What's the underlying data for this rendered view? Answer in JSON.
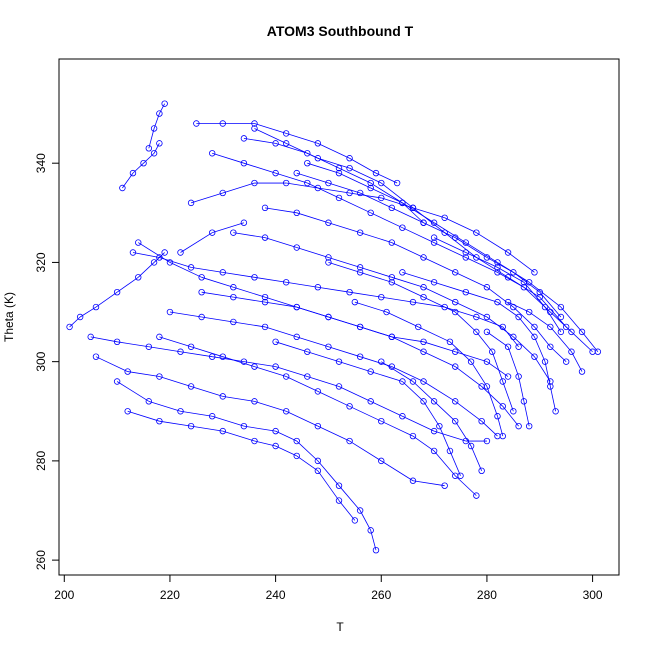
{
  "chart_data": {
    "type": "scatter",
    "title": "ATOM3 Southbound T",
    "xlabel": "T",
    "ylabel": "Theta (K)",
    "xlim": [
      199,
      305
    ],
    "ylim": [
      257,
      361
    ],
    "xticks": [
      "200",
      "220",
      "240",
      "260",
      "280",
      "300"
    ],
    "yticks": [
      "260",
      "280",
      "300",
      "320",
      "340"
    ],
    "marker": "open-circle",
    "line_style": "connected",
    "grid": false,
    "series": [
      {
        "points": [
          [
            201,
            307
          ],
          [
            203,
            309
          ],
          [
            206,
            311
          ],
          [
            210,
            314
          ],
          [
            214,
            317
          ],
          [
            217,
            320
          ],
          [
            219,
            322
          ]
        ]
      },
      {
        "points": [
          [
            211,
            335
          ],
          [
            213,
            338
          ],
          [
            215,
            340
          ],
          [
            217,
            342
          ],
          [
            218,
            344
          ]
        ]
      },
      {
        "points": [
          [
            216,
            343
          ],
          [
            217,
            347
          ],
          [
            218,
            350
          ],
          [
            219,
            352
          ]
        ]
      },
      {
        "points": [
          [
            225,
            348
          ],
          [
            230,
            348
          ],
          [
            236,
            348
          ],
          [
            242,
            346
          ],
          [
            248,
            344
          ],
          [
            254,
            341
          ],
          [
            259,
            338
          ],
          [
            263,
            336
          ]
        ]
      },
      {
        "points": [
          [
            234,
            345
          ],
          [
            240,
            344
          ],
          [
            246,
            342
          ],
          [
            252,
            339
          ],
          [
            258,
            336
          ],
          [
            264,
            332
          ],
          [
            270,
            328
          ],
          [
            276,
            324
          ],
          [
            282,
            320
          ],
          [
            288,
            316
          ],
          [
            294,
            311
          ],
          [
            298,
            306
          ],
          [
            301,
            302
          ]
        ]
      },
      {
        "points": [
          [
            236,
            347
          ],
          [
            242,
            344
          ],
          [
            248,
            341
          ],
          [
            254,
            339
          ],
          [
            260,
            336
          ],
          [
            266,
            331
          ],
          [
            272,
            326
          ],
          [
            278,
            321
          ],
          [
            284,
            317
          ],
          [
            290,
            313
          ],
          [
            295,
            307
          ],
          [
            300,
            302
          ]
        ]
      },
      {
        "points": [
          [
            228,
            342
          ],
          [
            234,
            340
          ],
          [
            240,
            338
          ],
          [
            246,
            336
          ],
          [
            252,
            333
          ],
          [
            258,
            330
          ],
          [
            264,
            327
          ],
          [
            270,
            324
          ],
          [
            276,
            321
          ],
          [
            282,
            318
          ],
          [
            287,
            315
          ],
          [
            292,
            310
          ],
          [
            296,
            306
          ]
        ]
      },
      {
        "points": [
          [
            214,
            324
          ],
          [
            220,
            320
          ],
          [
            226,
            317
          ],
          [
            232,
            315
          ],
          [
            238,
            313
          ],
          [
            244,
            311
          ],
          [
            250,
            309
          ],
          [
            256,
            307
          ],
          [
            262,
            305
          ],
          [
            268,
            304
          ],
          [
            274,
            302
          ],
          [
            280,
            300
          ],
          [
            284,
            297
          ]
        ]
      },
      {
        "points": [
          [
            213,
            322
          ],
          [
            218,
            321
          ],
          [
            224,
            319
          ],
          [
            230,
            318
          ],
          [
            236,
            317
          ],
          [
            242,
            316
          ],
          [
            248,
            315
          ],
          [
            254,
            314
          ],
          [
            260,
            313
          ],
          [
            266,
            312
          ],
          [
            272,
            311
          ],
          [
            278,
            309
          ],
          [
            283,
            307
          ],
          [
            286,
            303
          ]
        ]
      },
      {
        "points": [
          [
            222,
            322
          ],
          [
            228,
            326
          ],
          [
            234,
            328
          ]
        ]
      },
      {
        "points": [
          [
            224,
            332
          ],
          [
            230,
            334
          ],
          [
            236,
            336
          ],
          [
            242,
            336
          ],
          [
            248,
            335
          ],
          [
            254,
            334
          ],
          [
            260,
            333
          ],
          [
            266,
            331
          ],
          [
            272,
            329
          ],
          [
            278,
            326
          ],
          [
            284,
            322
          ],
          [
            289,
            318
          ]
        ]
      },
      {
        "points": [
          [
            205,
            305
          ],
          [
            210,
            304
          ],
          [
            216,
            303
          ],
          [
            222,
            302
          ],
          [
            228,
            301
          ],
          [
            234,
            300
          ],
          [
            240,
            299
          ],
          [
            246,
            297
          ],
          [
            252,
            295
          ],
          [
            258,
            292
          ],
          [
            264,
            289
          ],
          [
            270,
            286
          ],
          [
            276,
            284
          ],
          [
            280,
            284
          ]
        ]
      },
      {
        "points": [
          [
            206,
            301
          ],
          [
            212,
            298
          ],
          [
            218,
            297
          ],
          [
            224,
            295
          ],
          [
            230,
            293
          ],
          [
            236,
            292
          ],
          [
            242,
            290
          ],
          [
            248,
            287
          ],
          [
            254,
            284
          ],
          [
            260,
            280
          ],
          [
            266,
            276
          ],
          [
            272,
            275
          ]
        ]
      },
      {
        "points": [
          [
            210,
            296
          ],
          [
            216,
            292
          ],
          [
            222,
            290
          ],
          [
            228,
            289
          ],
          [
            234,
            287
          ],
          [
            240,
            286
          ],
          [
            244,
            284
          ],
          [
            248,
            280
          ],
          [
            252,
            275
          ],
          [
            256,
            270
          ],
          [
            258,
            266
          ],
          [
            259,
            262
          ]
        ]
      },
      {
        "points": [
          [
            212,
            290
          ],
          [
            218,
            288
          ],
          [
            224,
            287
          ],
          [
            230,
            286
          ],
          [
            236,
            284
          ],
          [
            240,
            283
          ],
          [
            244,
            281
          ],
          [
            248,
            278
          ],
          [
            252,
            272
          ],
          [
            255,
            268
          ]
        ]
      },
      {
        "points": [
          [
            218,
            305
          ],
          [
            224,
            303
          ],
          [
            230,
            301
          ],
          [
            236,
            299
          ],
          [
            242,
            297
          ],
          [
            248,
            294
          ],
          [
            254,
            291
          ],
          [
            260,
            288
          ],
          [
            266,
            285
          ],
          [
            270,
            282
          ],
          [
            274,
            277
          ],
          [
            278,
            273
          ]
        ]
      },
      {
        "points": [
          [
            220,
            310
          ],
          [
            226,
            309
          ],
          [
            232,
            308
          ],
          [
            238,
            307
          ],
          [
            244,
            305
          ],
          [
            250,
            303
          ],
          [
            256,
            301
          ],
          [
            262,
            299
          ],
          [
            268,
            296
          ],
          [
            274,
            292
          ],
          [
            279,
            288
          ],
          [
            282,
            285
          ]
        ]
      },
      {
        "points": [
          [
            226,
            314
          ],
          [
            232,
            313
          ],
          [
            238,
            312
          ],
          [
            244,
            311
          ],
          [
            250,
            309
          ],
          [
            256,
            307
          ],
          [
            262,
            305
          ],
          [
            268,
            302
          ],
          [
            274,
            299
          ],
          [
            279,
            295
          ],
          [
            283,
            291
          ],
          [
            286,
            287
          ]
        ]
      },
      {
        "points": [
          [
            232,
            326
          ],
          [
            238,
            325
          ],
          [
            244,
            323
          ],
          [
            250,
            321
          ],
          [
            256,
            319
          ],
          [
            262,
            317
          ],
          [
            268,
            315
          ],
          [
            274,
            312
          ],
          [
            280,
            309
          ],
          [
            285,
            305
          ],
          [
            289,
            301
          ],
          [
            292,
            296
          ]
        ]
      },
      {
        "points": [
          [
            238,
            331
          ],
          [
            244,
            330
          ],
          [
            250,
            328
          ],
          [
            256,
            326
          ],
          [
            262,
            324
          ],
          [
            268,
            321
          ],
          [
            274,
            318
          ],
          [
            280,
            315
          ],
          [
            285,
            311
          ],
          [
            289,
            307
          ],
          [
            292,
            303
          ],
          [
            295,
            300
          ]
        ]
      },
      {
        "points": [
          [
            244,
            338
          ],
          [
            250,
            336
          ],
          [
            256,
            334
          ],
          [
            262,
            331
          ],
          [
            268,
            328
          ],
          [
            274,
            325
          ],
          [
            280,
            321
          ],
          [
            285,
            318
          ],
          [
            290,
            314
          ],
          [
            294,
            309
          ]
        ]
      },
      {
        "points": [
          [
            246,
            340
          ],
          [
            252,
            338
          ],
          [
            258,
            335
          ],
          [
            264,
            332
          ],
          [
            268,
            328
          ]
        ]
      },
      {
        "points": [
          [
            250,
            320
          ],
          [
            256,
            318
          ],
          [
            262,
            316
          ],
          [
            268,
            313
          ],
          [
            274,
            310
          ],
          [
            278,
            306
          ],
          [
            281,
            302
          ],
          [
            283,
            296
          ],
          [
            285,
            290
          ]
        ]
      },
      {
        "points": [
          [
            255,
            312
          ],
          [
            261,
            310
          ],
          [
            267,
            307
          ],
          [
            273,
            304
          ],
          [
            277,
            300
          ],
          [
            280,
            295
          ],
          [
            282,
            289
          ],
          [
            283,
            285
          ]
        ]
      },
      {
        "points": [
          [
            260,
            300
          ],
          [
            266,
            296
          ],
          [
            270,
            292
          ],
          [
            274,
            288
          ],
          [
            277,
            283
          ],
          [
            279,
            278
          ]
        ]
      },
      {
        "points": [
          [
            240,
            304
          ],
          [
            246,
            302
          ],
          [
            252,
            300
          ],
          [
            258,
            298
          ],
          [
            264,
            296
          ],
          [
            268,
            292
          ],
          [
            271,
            287
          ],
          [
            273,
            282
          ],
          [
            275,
            277
          ]
        ]
      },
      {
        "points": [
          [
            264,
            318
          ],
          [
            270,
            316
          ],
          [
            276,
            314
          ],
          [
            282,
            312
          ],
          [
            286,
            309
          ],
          [
            289,
            305
          ],
          [
            291,
            300
          ],
          [
            292,
            295
          ],
          [
            293,
            290
          ]
        ]
      },
      {
        "points": [
          [
            270,
            325
          ],
          [
            276,
            322
          ],
          [
            282,
            319
          ],
          [
            287,
            316
          ],
          [
            291,
            311
          ],
          [
            294,
            306
          ]
        ]
      },
      {
        "points": [
          [
            284,
            312
          ],
          [
            288,
            310
          ],
          [
            292,
            307
          ],
          [
            296,
            302
          ],
          [
            298,
            298
          ]
        ]
      },
      {
        "points": [
          [
            280,
            306
          ],
          [
            284,
            303
          ],
          [
            286,
            297
          ],
          [
            287,
            292
          ],
          [
            288,
            287
          ]
        ]
      }
    ]
  }
}
